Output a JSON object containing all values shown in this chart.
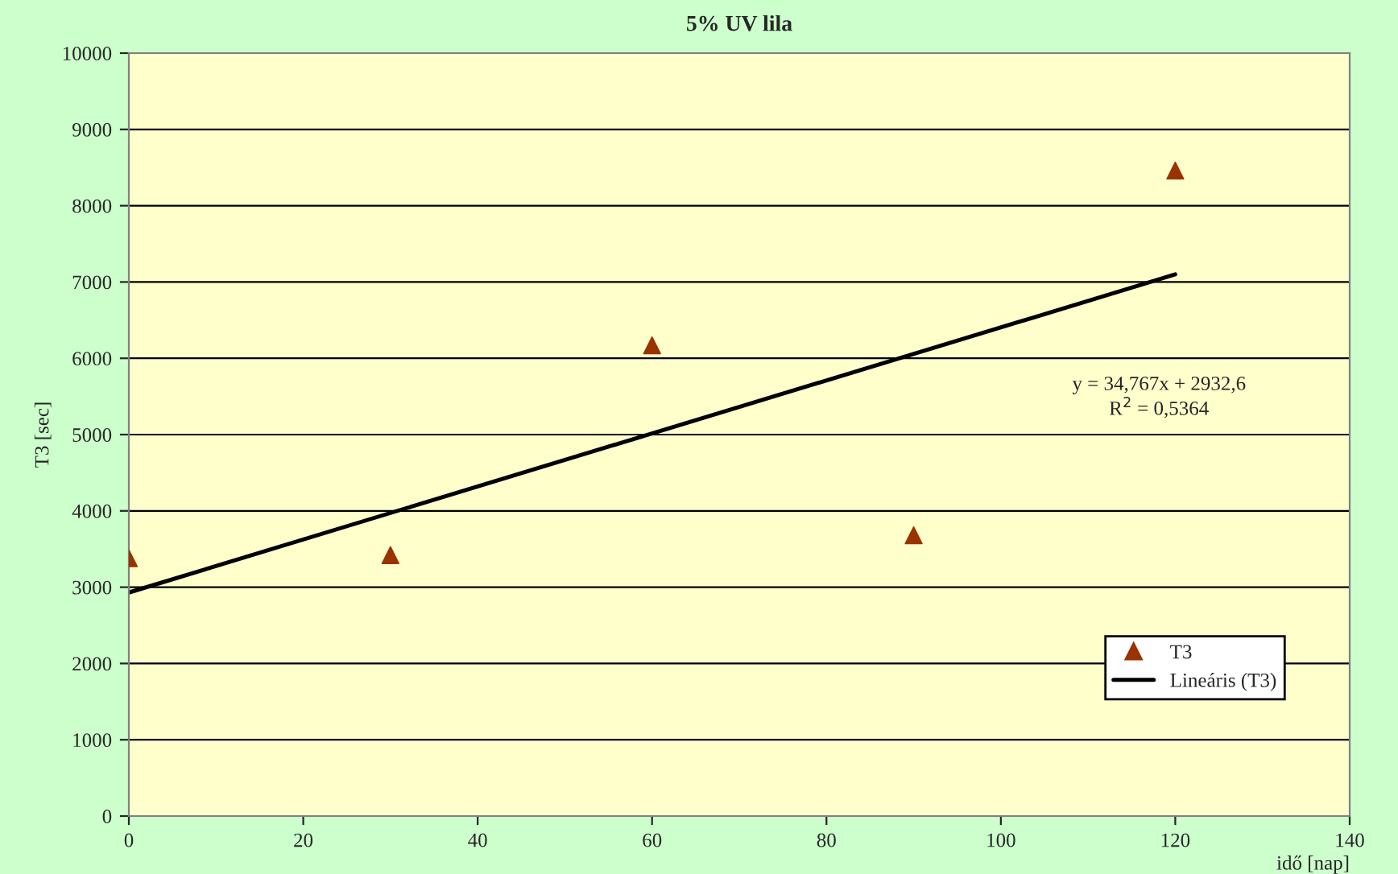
{
  "chart_data": {
    "type": "scatter",
    "title": "5% UV lila",
    "xlabel": "idő [nap]",
    "ylabel": "T3 [sec]",
    "x": [
      0,
      30,
      60,
      90,
      120
    ],
    "series": [
      {
        "name": "T3",
        "color": "#993300",
        "marker": "triangle",
        "values": [
          3380,
          3420,
          6170,
          3680,
          8460
        ]
      },
      {
        "name": "Lineáris (T3)",
        "type": "line",
        "color": "#000000",
        "marker": "none",
        "line_style": "solid",
        "x": [
          0,
          120
        ],
        "values": [
          2930,
          7100
        ]
      }
    ],
    "annotations": [
      "y = 34,767x + 2932,6\nR$^{2}$ = 0,5364"
    ],
    "xlim": [
      0,
      140
    ],
    "xticks": [
      0,
      20,
      40,
      60,
      80,
      100,
      120,
      140
    ],
    "ylim": [
      0,
      10000
    ],
    "yticks": [
      0,
      1000,
      2000,
      3000,
      4000,
      5000,
      6000,
      7000,
      8000,
      9000,
      10000
    ],
    "grid": "y",
    "legend": "bottom right"
  }
}
